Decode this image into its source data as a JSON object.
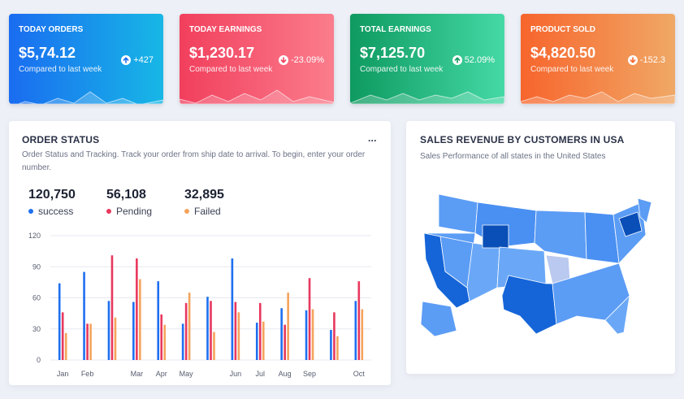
{
  "cards": [
    {
      "title": "TODAY ORDERS",
      "value": "$5,74.12",
      "change": "+427",
      "trend": "up",
      "note": "Compared to last week",
      "colors": [
        "#1a6cf0",
        "#17b7e6"
      ]
    },
    {
      "title": "TODAY EARNINGS",
      "value": "$1,230.17",
      "change": "-23.09%",
      "trend": "down",
      "note": "Compared to last week",
      "colors": [
        "#f13f5d",
        "#fb7d8c"
      ]
    },
    {
      "title": "TOTAL EARNINGS",
      "value": "$7,125.70",
      "change": "52.09%",
      "trend": "up",
      "note": "Compared to last week",
      "colors": [
        "#0e9a60",
        "#45d9a6"
      ]
    },
    {
      "title": "PRODUCT SOLD",
      "value": "$4,820.50",
      "change": "-152.3",
      "trend": "down",
      "note": "Compared to last week",
      "colors": [
        "#f7652c",
        "#f0a866"
      ]
    }
  ],
  "order_status": {
    "title": "ORDER STATUS",
    "menu": "...",
    "description": "Order Status and Tracking. Track your order from ship date to arrival. To begin, enter your order number.",
    "summary": [
      {
        "value": "120,750",
        "label": "success"
      },
      {
        "value": "56,108",
        "label": "Pending"
      },
      {
        "value": "32,895",
        "label": "Failed"
      }
    ],
    "chart": {
      "type": "bar",
      "categories": [
        "Jan",
        "Feb",
        null,
        "Mar",
        "Apr",
        "May",
        null,
        "Jun",
        "Jul",
        "Aug",
        "Sep",
        null,
        "Oct"
      ],
      "series": [
        {
          "name": "success",
          "color": "#1f6ff0",
          "values": [
            74,
            85,
            57,
            56,
            76,
            35,
            61,
            98,
            36,
            50,
            48,
            29,
            57
          ]
        },
        {
          "name": "Pending",
          "color": "#e8375e",
          "values": [
            46,
            35,
            101,
            98,
            44,
            55,
            57,
            56,
            55,
            34,
            79,
            46,
            76
          ]
        },
        {
          "name": "Failed",
          "color": "#f5a35c",
          "values": [
            26,
            35,
            41,
            78,
            34,
            65,
            27,
            46,
            37,
            65,
            49,
            23,
            49
          ]
        }
      ],
      "ylim": [
        0,
        120
      ],
      "yticks": [
        0,
        30,
        60,
        90,
        120
      ],
      "grid": true
    }
  },
  "sales_revenue": {
    "title": "SALES REVENUE BY CUSTOMERS IN USA",
    "subtitle": "Sales Performance of all states in the United States"
  }
}
